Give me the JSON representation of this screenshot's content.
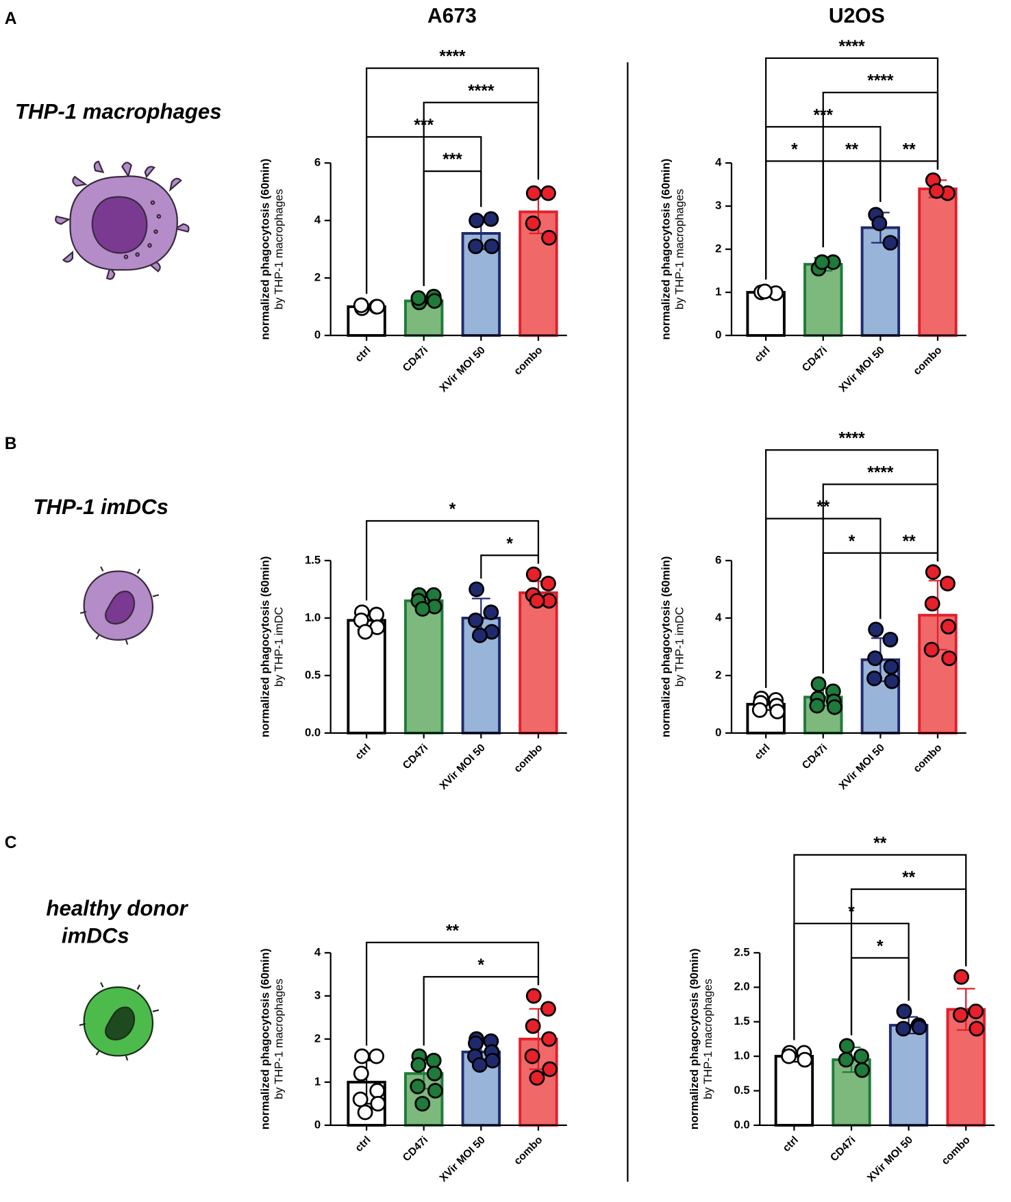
{
  "panels": [
    {
      "letter": "A",
      "title": [
        "THP-1 macrophages"
      ]
    },
    {
      "letter": "B",
      "title": [
        "THP-1 imDCs"
      ]
    },
    {
      "letter": "C",
      "title": [
        "healthy donor",
        "imDCs"
      ]
    }
  ],
  "columns": [
    "A673",
    "U2OS"
  ],
  "chart_data": [
    {
      "type": "bar",
      "ylabel": [
        "normalized phagocytosis  (60min)",
        "by THP-1 macrophages"
      ],
      "categories": [
        "ctrl",
        "CD47i",
        "XVir MOI 50",
        "combo"
      ],
      "values": [
        1.0,
        1.2,
        3.55,
        4.3
      ],
      "errors": [
        0.08,
        0.1,
        0.55,
        0.75
      ],
      "points": [
        [
          0.95,
          1.0,
          1.05,
          1.0
        ],
        [
          1.15,
          1.35,
          1.3,
          1.2
        ],
        [
          4.0,
          4.05,
          3.1,
          3.1
        ],
        [
          4.95,
          4.95,
          3.9,
          3.4
        ]
      ],
      "colors": [
        "#ffffff",
        "#7db87d",
        "#98b4d8",
        "#f06868"
      ],
      "edge_colors": [
        "#000000",
        "#1e7b3a",
        "#1f2a6e",
        "#e0202a"
      ],
      "point_colors": [
        "#ffffff",
        "#1e7b3a",
        "#1f2a6e",
        "#e8202a"
      ],
      "ylim": [
        0,
        6
      ],
      "yticks": [
        0,
        2,
        4,
        6
      ],
      "brackets": [
        {
          "from": "ctrl",
          "to": "combo",
          "label": "****"
        },
        {
          "from": "CD47i",
          "to": "combo",
          "label": "****"
        },
        {
          "from": "ctrl",
          "to": "XVir MOI 50",
          "label": "***"
        },
        {
          "from": "CD47i",
          "to": "XVir MOI 50",
          "label": "***"
        }
      ]
    },
    {
      "type": "bar",
      "ylabel": [
        "normalized phagocytosis  (60min)",
        "by THP-1 macrophages"
      ],
      "categories": [
        "ctrl",
        "CD47i",
        "XVir MOI 50",
        "combo"
      ],
      "values": [
        1.0,
        1.65,
        2.5,
        3.4
      ],
      "errors": [
        0.05,
        0.15,
        0.35,
        0.2
      ],
      "points": [
        [
          1.0,
          0.98,
          1.02
        ],
        [
          1.55,
          1.7,
          1.7
        ],
        [
          2.8,
          2.15,
          2.6
        ],
        [
          3.6,
          3.3,
          3.35
        ]
      ],
      "colors": [
        "#ffffff",
        "#7db87d",
        "#98b4d8",
        "#f06868"
      ],
      "edge_colors": [
        "#000000",
        "#1e7b3a",
        "#1f2a6e",
        "#e0202a"
      ],
      "point_colors": [
        "#ffffff",
        "#1e7b3a",
        "#1f2a6e",
        "#e8202a"
      ],
      "ylim": [
        0,
        4
      ],
      "yticks": [
        0,
        1,
        2,
        3,
        4
      ],
      "brackets": [
        {
          "from": "ctrl",
          "to": "combo",
          "label": "****"
        },
        {
          "from": "CD47i",
          "to": "combo",
          "label": "****"
        },
        {
          "from": "ctrl",
          "to": "XVir MOI 50",
          "label": "***"
        },
        {
          "from": "ctrl",
          "to": "CD47i",
          "label": "*"
        },
        {
          "from": "CD47i",
          "to": "XVir MOI 50",
          "label": "**"
        },
        {
          "from": "XVir MOI 50",
          "to": "combo",
          "label": "**"
        }
      ]
    },
    {
      "type": "bar",
      "ylabel": [
        "normalized phagocytosis  (60min)",
        "by THP-1 imDC"
      ],
      "categories": [
        "ctrl",
        "CD47i",
        "XVir MOI 50",
        "combo"
      ],
      "values": [
        0.98,
        1.15,
        1.0,
        1.22
      ],
      "errors": [
        0.08,
        0.05,
        0.17,
        0.1
      ],
      "points": [
        [
          1.05,
          1.03,
          0.98,
          0.92,
          0.88
        ],
        [
          1.2,
          1.2,
          1.15,
          1.1,
          1.08
        ],
        [
          1.25,
          1.05,
          0.98,
          0.88,
          0.85
        ],
        [
          1.38,
          1.3,
          1.2,
          1.15,
          1.15
        ]
      ],
      "colors": [
        "#ffffff",
        "#7db87d",
        "#98b4d8",
        "#f06868"
      ],
      "edge_colors": [
        "#000000",
        "#1e7b3a",
        "#1f2a6e",
        "#e0202a"
      ],
      "point_colors": [
        "#ffffff",
        "#1e7b3a",
        "#1f2a6e",
        "#e8202a"
      ],
      "ylim": [
        0,
        1.5
      ],
      "yticks": [
        {
          "value": 0,
          "label": "0.0"
        },
        0.5,
        {
          "value": 1,
          "label": "1.0"
        },
        1.5
      ],
      "brackets": [
        {
          "from": "ctrl",
          "to": "combo",
          "label": "*"
        },
        {
          "from": "XVir MOI 50",
          "to": "combo",
          "label": "*"
        }
      ]
    },
    {
      "type": "bar",
      "ylabel": [
        "normalized phagocytosis  (60min)",
        "by THP-1 imDC"
      ],
      "categories": [
        "ctrl",
        "CD47i",
        "XVir MOI 50",
        "combo"
      ],
      "values": [
        1.0,
        1.25,
        2.55,
        4.1
      ],
      "errors": [
        0.2,
        0.3,
        0.75,
        1.2
      ],
      "points": [
        [
          1.2,
          1.15,
          1.05,
          0.95,
          0.8,
          0.75
        ],
        [
          1.7,
          1.45,
          1.2,
          1.1,
          0.95,
          0.9
        ],
        [
          3.6,
          3.25,
          2.6,
          2.3,
          1.9,
          1.8
        ],
        [
          5.6,
          5.2,
          4.5,
          3.7,
          2.9,
          2.6
        ]
      ],
      "colors": [
        "#ffffff",
        "#7db87d",
        "#98b4d8",
        "#f06868"
      ],
      "edge_colors": [
        "#000000",
        "#1e7b3a",
        "#1f2a6e",
        "#e0202a"
      ],
      "point_colors": [
        "#ffffff",
        "#1e7b3a",
        "#1f2a6e",
        "#e8202a"
      ],
      "ylim": [
        0,
        6
      ],
      "yticks": [
        0,
        2,
        4,
        6
      ],
      "brackets": [
        {
          "from": "ctrl",
          "to": "combo",
          "label": "****"
        },
        {
          "from": "CD47i",
          "to": "combo",
          "label": "****"
        },
        {
          "from": "ctrl",
          "to": "XVir MOI 50",
          "label": "**"
        },
        {
          "from": "CD47i",
          "to": "XVir MOI 50",
          "label": "*"
        },
        {
          "from": "XVir MOI 50",
          "to": "combo",
          "label": "**"
        }
      ]
    },
    {
      "type": "bar",
      "ylabel": [
        "normalized phagocytosis  (60min)",
        "by THP-1 macrophages"
      ],
      "categories": [
        "ctrl",
        "CD47i",
        "XVir MOI 50",
        "combo"
      ],
      "values": [
        1.0,
        1.2,
        1.7,
        2.0
      ],
      "errors": [
        0.5,
        0.35,
        0.25,
        0.7
      ],
      "points": [
        [
          1.6,
          1.6,
          1.2,
          0.8,
          0.6,
          0.5,
          0.3
        ],
        [
          1.6,
          1.5,
          1.4,
          1.2,
          0.9,
          0.8,
          0.5
        ],
        [
          2.0,
          1.95,
          1.9,
          1.7,
          1.6,
          1.5,
          1.4
        ],
        [
          3.0,
          2.7,
          2.3,
          2.0,
          1.6,
          1.3,
          1.1
        ]
      ],
      "colors": [
        "#ffffff",
        "#7db87d",
        "#98b4d8",
        "#f06868"
      ],
      "edge_colors": [
        "#000000",
        "#1e7b3a",
        "#1f2a6e",
        "#e0202a"
      ],
      "point_colors": [
        "#ffffff",
        "#1e7b3a",
        "#1f2a6e",
        "#e8202a"
      ],
      "ylim": [
        0,
        4
      ],
      "yticks": [
        0,
        1,
        2,
        3,
        4
      ],
      "brackets": [
        {
          "from": "ctrl",
          "to": "combo",
          "label": "**"
        },
        {
          "from": "CD47i",
          "to": "combo",
          "label": "*"
        }
      ]
    },
    {
      "type": "bar",
      "ylabel": [
        "normalized phagocytosis  (90min)",
        "by THP-1 macrophages"
      ],
      "categories": [
        "ctrl",
        "CD47i",
        "XVir MOI 50",
        "combo"
      ],
      "values": [
        1.0,
        0.95,
        1.45,
        1.68
      ],
      "errors": [
        0.08,
        0.18,
        0.12,
        0.3
      ],
      "points": [
        [
          1.05,
          1.05,
          1.0,
          0.95
        ],
        [
          1.15,
          1.0,
          0.95,
          0.8
        ],
        [
          1.65,
          1.45,
          1.4,
          1.42
        ],
        [
          2.15,
          1.65,
          1.6,
          1.4
        ]
      ],
      "colors": [
        "#ffffff",
        "#7db87d",
        "#98b4d8",
        "#f06868"
      ],
      "edge_colors": [
        "#000000",
        "#1e7b3a",
        "#1f2a6e",
        "#e0202a"
      ],
      "point_colors": [
        "#ffffff",
        "#1e7b3a",
        "#1f2a6e",
        "#e8202a"
      ],
      "ylim": [
        0,
        2.5
      ],
      "yticks": [
        {
          "value": 0,
          "label": "0.0"
        },
        0.5,
        {
          "value": 1,
          "label": "1.0"
        },
        1.5,
        {
          "value": 2,
          "label": "2.0"
        },
        2.5
      ],
      "brackets": [
        {
          "from": "ctrl",
          "to": "combo",
          "label": "**"
        },
        {
          "from": "CD47i",
          "to": "combo",
          "label": "**"
        },
        {
          "from": "ctrl",
          "to": "XVir MOI 50",
          "label": "*"
        },
        {
          "from": "CD47i",
          "to": "XVir MOI 50",
          "label": "*"
        }
      ]
    }
  ]
}
